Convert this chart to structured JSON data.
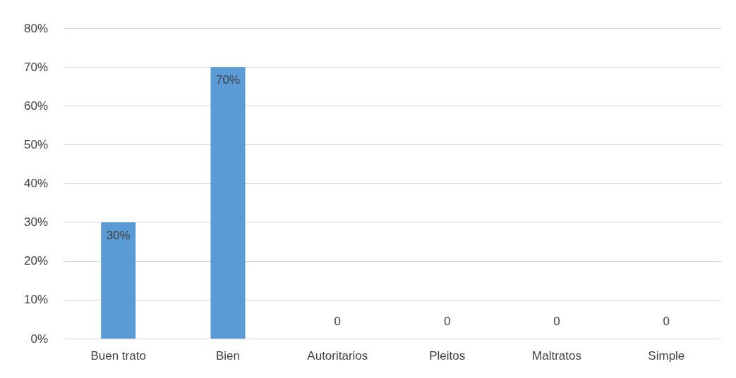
{
  "chart_data": {
    "type": "bar",
    "categories": [
      "Buen trato",
      "Bien",
      "Autoritarios",
      "Pleitos",
      "Maltratos",
      "Simple"
    ],
    "values": [
      30,
      70,
      0,
      0,
      0,
      0
    ],
    "value_labels": [
      "30%",
      "70%",
      "0",
      "0",
      "0",
      "0"
    ],
    "color": "#5b9bd5",
    "ylim": [
      0,
      80
    ],
    "yticks": [
      {
        "value": 0,
        "label": "0%"
      },
      {
        "value": 10,
        "label": "10%"
      },
      {
        "value": 20,
        "label": "20%"
      },
      {
        "value": 30,
        "label": "30%"
      },
      {
        "value": 40,
        "label": "40%"
      },
      {
        "value": 50,
        "label": "50%"
      },
      {
        "value": 60,
        "label": "60%"
      },
      {
        "value": 70,
        "label": "70%"
      },
      {
        "value": 80,
        "label": "80%"
      }
    ],
    "grid": true
  }
}
